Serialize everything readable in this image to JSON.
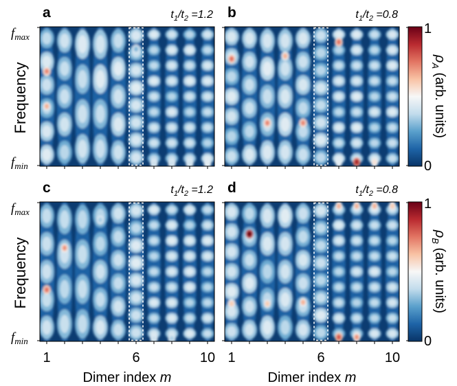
{
  "chart_data": [
    {
      "id": "a",
      "type": "heatmap",
      "panel_label": "a",
      "parameter_label": "t1/t2 =1.2",
      "ratio": 1.2,
      "quantity": "rho_A",
      "ylabel": "Frequency",
      "y_ticks": [
        "f_max",
        "f_min"
      ],
      "xlabel": "",
      "x_ticks": [
        1,
        6,
        10
      ],
      "x_range": [
        1,
        10
      ],
      "highlighted_column": 6,
      "mode_rows": [
        6,
        5,
        4,
        4,
        5,
        8,
        9,
        9,
        9,
        9
      ],
      "hot_spots": [
        {
          "m": 1,
          "f": 0.68,
          "v": 0.72
        },
        {
          "m": 1,
          "f": 0.43,
          "v": 0.65
        },
        {
          "m": 5,
          "f": 0.69,
          "v": 0.45
        },
        {
          "m": 6,
          "f": 0.84,
          "v": 0.3
        },
        {
          "m": 7,
          "f": 0.02,
          "v": 0.4
        },
        {
          "m": 8,
          "f": 0.02,
          "v": 0.4
        },
        {
          "m": 9,
          "f": 0.02,
          "v": 0.4
        },
        {
          "m": 10,
          "f": 0.02,
          "v": 0.45
        }
      ]
    },
    {
      "id": "b",
      "type": "heatmap",
      "panel_label": "b",
      "parameter_label": "t1/t2 =0.8",
      "ratio": 0.8,
      "quantity": "rho_A",
      "ylabel": "",
      "y_ticks": [],
      "xlabel": "",
      "x_ticks": [
        1,
        6,
        10
      ],
      "x_range": [
        1,
        10
      ],
      "highlighted_column": 6,
      "mode_rows": [
        7,
        6,
        5,
        5,
        6,
        8,
        9,
        9,
        9,
        9
      ],
      "hot_spots": [
        {
          "m": 1,
          "f": 0.77,
          "v": 0.75
        },
        {
          "m": 3,
          "f": 0.31,
          "v": 0.72
        },
        {
          "m": 4,
          "f": 0.79,
          "v": 0.65
        },
        {
          "m": 5,
          "f": 0.31,
          "v": 0.72
        },
        {
          "m": 7,
          "f": 0.89,
          "v": 0.75
        },
        {
          "m": 7,
          "f": 0.03,
          "v": 0.45
        },
        {
          "m": 8,
          "f": 0.03,
          "v": 0.9
        },
        {
          "m": 9,
          "f": 0.03,
          "v": 0.55
        }
      ]
    },
    {
      "id": "c",
      "type": "heatmap",
      "panel_label": "c",
      "parameter_label": "t1/t2 =1.2",
      "ratio": 1.2,
      "quantity": "rho_B",
      "ylabel": "Frequency",
      "y_ticks": [
        "f_max",
        "f_min"
      ],
      "xlabel": "Dimer index m",
      "x_ticks": [
        1,
        6,
        10
      ],
      "x_range": [
        1,
        10
      ],
      "highlighted_column": 6,
      "mode_rows": [
        5,
        4,
        4,
        5,
        6,
        8,
        9,
        9,
        9,
        9
      ],
      "hot_spots": [
        {
          "m": 1,
          "f": 0.37,
          "v": 0.75
        },
        {
          "m": 2,
          "f": 0.67,
          "v": 0.7
        },
        {
          "m": 4,
          "f": 0.87,
          "v": 0.35
        },
        {
          "m": 7,
          "f": 0.02,
          "v": 0.4
        },
        {
          "m": 8,
          "f": 0.02,
          "v": 0.35
        }
      ]
    },
    {
      "id": "d",
      "type": "heatmap",
      "panel_label": "d",
      "parameter_label": "t1/t2 =0.8",
      "ratio": 0.8,
      "quantity": "rho_B",
      "ylabel": "",
      "y_ticks": [],
      "xlabel": "Dimer index m",
      "x_ticks": [
        1,
        6,
        10
      ],
      "x_range": [
        1,
        10
      ],
      "highlighted_column": 6,
      "mode_rows": [
        7,
        6,
        5,
        5,
        6,
        8,
        9,
        9,
        9,
        9
      ],
      "hot_spots": [
        {
          "m": 2,
          "f": 0.77,
          "v": 1.0
        },
        {
          "m": 1,
          "f": 0.27,
          "v": 0.6
        },
        {
          "m": 3,
          "f": 0.27,
          "v": 0.6
        },
        {
          "m": 5,
          "f": 0.28,
          "v": 0.65
        },
        {
          "m": 7,
          "f": 0.03,
          "v": 0.8
        },
        {
          "m": 8,
          "f": 0.03,
          "v": 0.7
        },
        {
          "m": 7,
          "f": 0.97,
          "v": 0.65
        },
        {
          "m": 8,
          "f": 0.97,
          "v": 0.65
        },
        {
          "m": 9,
          "f": 0.97,
          "v": 0.65
        },
        {
          "m": 10,
          "f": 0.97,
          "v": 0.6
        }
      ]
    }
  ],
  "colorbars": [
    {
      "id": "top",
      "label": "ρA (arb. units)",
      "symbol": "ρ",
      "subscript": "A",
      "unit_text": " (arb. units)",
      "min_label": "0",
      "max_label": "1"
    },
    {
      "id": "bottom",
      "label": "ρB (arb. units)",
      "symbol": "ρ",
      "subscript": "B",
      "unit_text": " (arb. units)",
      "min_label": "0",
      "max_label": "1"
    }
  ],
  "colormap": {
    "name": "RdBu_r",
    "stops": [
      "#083467",
      "#1e64a7",
      "#5aa0cc",
      "#c2dcec",
      "#f7f7f7",
      "#f8c2a4",
      "#e27563",
      "#b92a30",
      "#690016"
    ]
  },
  "labels": {
    "frequency": "Frequency",
    "f_prefix": "f",
    "f_max_sub": "max",
    "f_min_sub": "min",
    "xlabel_prefix": "Dimer index ",
    "xlabel_var": "m",
    "ratio_t": "t",
    "ratio_sub1": "1",
    "ratio_sub2": "2"
  }
}
